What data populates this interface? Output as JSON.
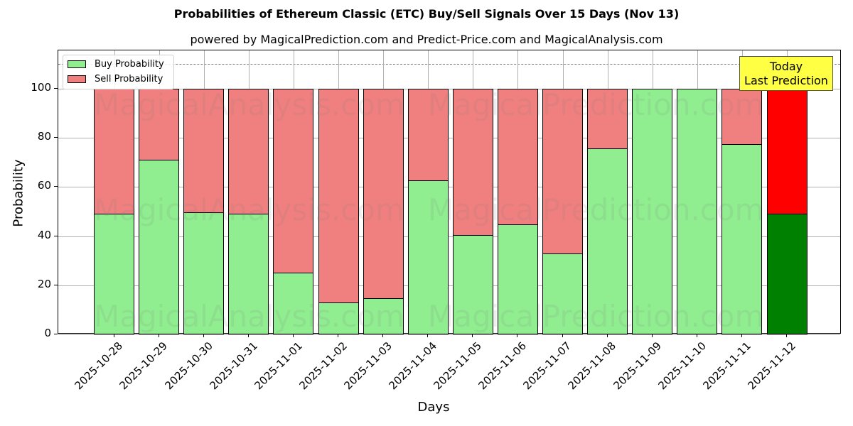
{
  "chart_data": {
    "type": "bar",
    "stacked": true,
    "title": "Probabilities of Ethereum Classic (ETC) Buy/Sell Signals Over 15 Days (Nov 13)",
    "subtitle": "powered by MagicalPrediction.com and Predict-Price.com and MagicalAnalysis.com",
    "xlabel": "Days",
    "ylabel": "Probability",
    "ylim": [
      0,
      115
    ],
    "yticks": [
      0,
      20,
      40,
      60,
      80,
      100
    ],
    "grid": true,
    "legend_position": "upper left",
    "categories": [
      "2025-10-28",
      "2025-10-29",
      "2025-10-30",
      "2025-10-31",
      "2025-11-01",
      "2025-11-02",
      "2025-11-03",
      "2025-11-04",
      "2025-11-05",
      "2025-11-06",
      "2025-11-07",
      "2025-11-08",
      "2025-11-09",
      "2025-11-10",
      "2025-11-11",
      "2025-11-12"
    ],
    "series": [
      {
        "name": "Buy Probability",
        "color": "#90ee90",
        "values": [
          49.1,
          71.1,
          49.7,
          49.1,
          25.1,
          13.0,
          14.7,
          62.7,
          40.5,
          44.8,
          32.9,
          75.7,
          100.0,
          100.0,
          77.5,
          49.1
        ]
      },
      {
        "name": "Sell Probability",
        "color": "#f08080",
        "values": [
          50.9,
          28.9,
          50.3,
          50.9,
          74.9,
          87.0,
          85.3,
          37.3,
          59.5,
          55.2,
          67.1,
          24.3,
          0.0,
          0.0,
          22.5,
          50.9
        ]
      }
    ],
    "highlight": {
      "index": 15,
      "buy_color": "#008000",
      "sell_color": "#ff0000",
      "annotation": [
        "Today",
        "Last Prediction"
      ],
      "annotation_bg": "#ffff44"
    },
    "reference_line": {
      "y": 110,
      "style": "dashed",
      "color": "#808080"
    },
    "watermarks": [
      "MagicalAnalysis.com",
      "MagicalPrediction.com"
    ]
  }
}
